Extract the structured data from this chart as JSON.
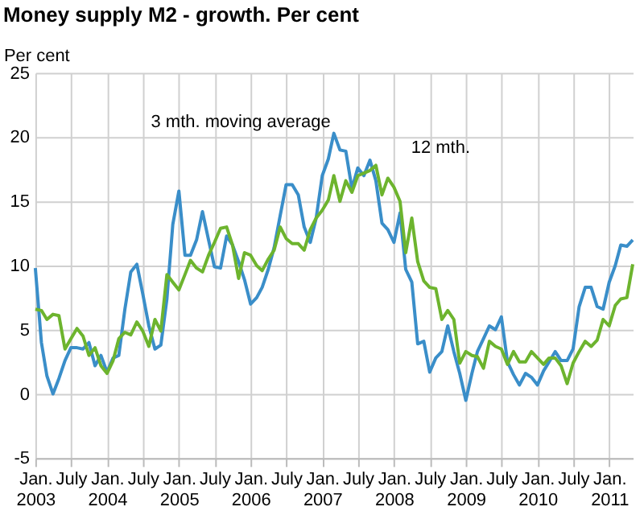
{
  "chart_data": {
    "type": "line",
    "title": "Money supply M2 - growth. Per cent",
    "ylabel": "Per cent",
    "x": [
      "2003-01",
      "2003-02",
      "2003-03",
      "2003-04",
      "2003-05",
      "2003-06",
      "2003-07",
      "2003-08",
      "2003-09",
      "2003-10",
      "2003-11",
      "2003-12",
      "2004-01",
      "2004-02",
      "2004-03",
      "2004-04",
      "2004-05",
      "2004-06",
      "2004-07",
      "2004-08",
      "2004-09",
      "2004-10",
      "2004-11",
      "2004-12",
      "2005-01",
      "2005-02",
      "2005-03",
      "2005-04",
      "2005-05",
      "2005-06",
      "2005-07",
      "2005-08",
      "2005-09",
      "2005-10",
      "2005-11",
      "2005-12",
      "2006-01",
      "2006-02",
      "2006-03",
      "2006-04",
      "2006-05",
      "2006-06",
      "2006-07",
      "2006-08",
      "2006-09",
      "2006-10",
      "2006-11",
      "2006-12",
      "2007-01",
      "2007-02",
      "2007-03",
      "2007-04",
      "2007-05",
      "2007-06",
      "2007-07",
      "2007-08",
      "2007-09",
      "2007-10",
      "2007-11",
      "2007-12",
      "2008-01",
      "2008-02",
      "2008-03",
      "2008-04",
      "2008-05",
      "2008-06",
      "2008-07",
      "2008-08",
      "2008-09",
      "2008-10",
      "2008-11",
      "2008-12",
      "2009-01",
      "2009-02",
      "2009-03",
      "2009-04",
      "2009-05",
      "2009-06",
      "2009-07",
      "2009-08",
      "2009-09",
      "2009-10",
      "2009-11",
      "2009-12",
      "2010-01",
      "2010-02",
      "2010-03",
      "2010-04",
      "2010-05",
      "2010-06",
      "2010-07",
      "2010-08",
      "2010-09",
      "2010-10",
      "2010-11",
      "2010-12",
      "2011-01",
      "2011-02",
      "2011-03",
      "2011-04",
      "2011-05"
    ],
    "series": [
      {
        "name": "3 mth. moving average",
        "color": "#3a8ec9",
        "values": [
          9.8,
          4,
          1.4,
          0,
          1.2,
          2.6,
          3.6,
          3.6,
          3.5,
          4,
          2.2,
          3,
          1.7,
          2.8,
          3,
          6.6,
          9.5,
          10.1,
          7.8,
          5.3,
          3.5,
          3.8,
          7.4,
          13.2,
          15.8,
          10.8,
          10.8,
          12,
          14.2,
          12,
          9.9,
          9.8,
          12.3,
          11.6,
          10.3,
          8.9,
          7,
          7.5,
          8.3,
          9.7,
          11.4,
          13.9,
          16.3,
          16.3,
          15.5,
          13,
          11.8,
          13.7,
          17,
          18.3,
          20.3,
          19,
          18.9,
          16,
          17.6,
          17,
          18.2,
          16.6,
          13.3,
          12.8,
          11.8,
          14.1,
          9.7,
          8.7,
          3.9,
          4.1,
          1.7,
          2.8,
          3.3,
          5.3,
          3.3,
          1.6,
          -0.5,
          1.6,
          3.3,
          4.3,
          5.3,
          5,
          6,
          2.5,
          1.5,
          0.7,
          1.6,
          1.3,
          0.7,
          1.8,
          2.5,
          3.3,
          2.6,
          2.6,
          3.5,
          6.8,
          8.3,
          8.3,
          6.8,
          6.6,
          8.7,
          10,
          11.6,
          11.5,
          12
        ]
      },
      {
        "name": "12 mth.",
        "color": "#6db42e",
        "values": [
          6.6,
          6.5,
          5.8,
          6.2,
          6.1,
          3.5,
          4.3,
          5.1,
          4.5,
          3,
          3.6,
          2.2,
          1.6,
          2.6,
          4.3,
          4.8,
          4.6,
          5.6,
          4.9,
          3.7,
          5.8,
          4.9,
          9.3,
          8.7,
          8.1,
          9.3,
          10.4,
          9.8,
          9.5,
          10.8,
          11.8,
          12.9,
          13,
          11.6,
          9,
          11,
          10.8,
          10,
          9.6,
          10.5,
          11.2,
          13,
          12.1,
          11.7,
          11.7,
          11.2,
          12.8,
          13.7,
          14.3,
          15.1,
          17,
          15,
          16.6,
          15.7,
          17,
          17.2,
          17.4,
          17.8,
          15.5,
          16.8,
          16.1,
          15,
          11,
          13.7,
          10.3,
          8.8,
          8.3,
          8.2,
          5.8,
          6.5,
          5.8,
          2.4,
          3.3,
          3,
          2.9,
          2,
          4.1,
          3.7,
          3.5,
          2.3,
          3.3,
          2.5,
          2.5,
          3.3,
          2.8,
          2.3,
          2.8,
          2.8,
          2.2,
          0.8,
          2.4,
          3.3,
          4.1,
          3.7,
          4.2,
          5.8,
          5.3,
          6.9,
          7.4,
          7.5,
          10.1
        ]
      }
    ],
    "xlim": [
      "2003-01",
      "2011-05"
    ],
    "xticks": [
      {
        "value": "2003-01",
        "label": "Jan.\n2003"
      },
      {
        "value": "2003-07",
        "label": "July"
      },
      {
        "value": "2004-01",
        "label": "Jan.\n2004"
      },
      {
        "value": "2004-07",
        "label": "July"
      },
      {
        "value": "2005-01",
        "label": "Jan.\n2005"
      },
      {
        "value": "2005-07",
        "label": "July"
      },
      {
        "value": "2006-01",
        "label": "Jan.\n2006"
      },
      {
        "value": "2006-07",
        "label": "July"
      },
      {
        "value": "2007-01",
        "label": "Jan.\n2007"
      },
      {
        "value": "2007-07",
        "label": "July"
      },
      {
        "value": "2008-01",
        "label": "Jan.\n2008"
      },
      {
        "value": "2008-07",
        "label": "July"
      },
      {
        "value": "2009-01",
        "label": "Jan.\n2009"
      },
      {
        "value": "2009-07",
        "label": "July"
      },
      {
        "value": "2010-01",
        "label": "Jan.\n2010"
      },
      {
        "value": "2010-07",
        "label": "July"
      },
      {
        "value": "2011-01",
        "label": "Jan.\n2011"
      }
    ],
    "ylim": [
      -5,
      25
    ],
    "yticks": [
      -5,
      0,
      5,
      10,
      15,
      20,
      25
    ],
    "grid": true,
    "marker": "none",
    "line_style": "solid"
  }
}
